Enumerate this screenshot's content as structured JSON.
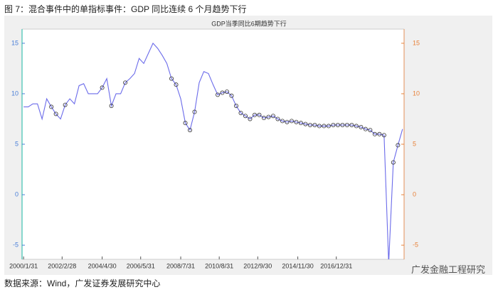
{
  "caption": "图 7：混合事件中的单指标事件：GDP 同比连续 6 个月趋势下行",
  "source": "数据来源：Wind，广发证券发展研究中心",
  "watermark": "广发金融工程研究",
  "chart_data": {
    "type": "line",
    "title": "GDP当季同比6期趋势下行",
    "x": [
      0,
      3,
      6,
      9,
      12,
      15,
      18,
      21,
      24,
      27,
      30,
      33,
      36,
      39,
      42,
      45,
      48,
      51,
      54,
      57,
      60,
      63,
      66,
      69,
      72,
      75,
      78,
      81,
      84,
      87,
      90,
      93,
      96,
      99,
      102,
      105,
      108,
      111,
      114,
      117,
      120,
      123,
      126,
      129,
      132,
      135,
      138,
      141,
      144,
      147,
      150,
      153,
      156,
      159,
      162,
      165,
      168,
      171,
      174,
      177,
      180,
      183,
      186,
      189,
      192,
      195,
      198,
      201,
      204,
      207,
      210,
      213,
      216,
      219,
      222,
      225,
      228,
      231,
      234,
      237,
      240,
      243,
      246
    ],
    "series": [
      {
        "color": "#6b6bea",
        "values": [
          8.7,
          8.7,
          9.0,
          9.0,
          7.5,
          9.5,
          8.7,
          8.0,
          7.5,
          8.9,
          9.5,
          9.0,
          10.8,
          11.0,
          10.0,
          10.0,
          10.0,
          10.6,
          11.5,
          8.8,
          10.0,
          10.0,
          11.1,
          11.5,
          12.0,
          13.5,
          13.0,
          14.0,
          15.0,
          14.5,
          13.8,
          13.0,
          11.5,
          10.9,
          9.5,
          7.1,
          6.4,
          8.2,
          11.1,
          12.2,
          12.0,
          10.9,
          9.9,
          10.1,
          10.2,
          9.8,
          8.8,
          8.1,
          7.8,
          7.5,
          7.9,
          7.9,
          7.6,
          7.7,
          7.8,
          7.5,
          7.3,
          7.2,
          7.3,
          7.2,
          7.1,
          7.0,
          6.9,
          6.9,
          6.8,
          6.8,
          6.8,
          6.9,
          6.9,
          6.9,
          6.9,
          6.9,
          6.8,
          6.7,
          6.5,
          6.4,
          6.0,
          6.0,
          5.9,
          -6.8,
          3.2,
          4.9,
          6.5
        ]
      },
      {
        "color": "#333333",
        "marker": "circle",
        "values": [
          null,
          null,
          null,
          null,
          null,
          null,
          8.7,
          8.0,
          null,
          8.9,
          null,
          null,
          null,
          null,
          null,
          null,
          null,
          10.6,
          null,
          8.8,
          null,
          null,
          11.1,
          null,
          null,
          null,
          null,
          null,
          null,
          null,
          null,
          null,
          11.5,
          10.9,
          null,
          7.1,
          6.4,
          8.2,
          null,
          null,
          null,
          null,
          9.9,
          10.1,
          10.2,
          9.8,
          8.8,
          8.1,
          7.8,
          7.5,
          7.9,
          7.9,
          7.6,
          7.7,
          7.8,
          7.5,
          7.3,
          7.2,
          7.3,
          7.2,
          7.1,
          7.0,
          6.9,
          6.9,
          6.8,
          6.8,
          6.8,
          6.9,
          6.9,
          6.9,
          6.9,
          6.9,
          6.8,
          6.7,
          6.5,
          6.4,
          6.0,
          6.0,
          5.9,
          null,
          3.2,
          4.9,
          null
        ]
      }
    ],
    "xlim": [
      -1,
      247
    ],
    "xticks": [
      {
        "value": 0,
        "label": "2000/1/31"
      },
      {
        "value": 25,
        "label": "2002/2/28"
      },
      {
        "value": 51,
        "label": "2004/4/30"
      },
      {
        "value": 76,
        "label": "2006/5/31"
      },
      {
        "value": 102,
        "label": "2008/7/31"
      },
      {
        "value": 127,
        "label": "2010/8/31"
      },
      {
        "value": 152,
        "label": "2012/9/30"
      },
      {
        "value": 178,
        "label": "2014/11/30"
      },
      {
        "value": 203,
        "label": "2016/12/31"
      }
    ],
    "ylim": [
      -6.4,
      16.4
    ],
    "yticks": [
      -5,
      0,
      5,
      10,
      15
    ],
    "y2lim": [
      -6.4,
      16.4
    ],
    "y2ticks": [
      -5,
      0,
      5,
      10,
      15
    ],
    "ycolor": "#4a7fd8",
    "y2color": "#e8823a"
  }
}
